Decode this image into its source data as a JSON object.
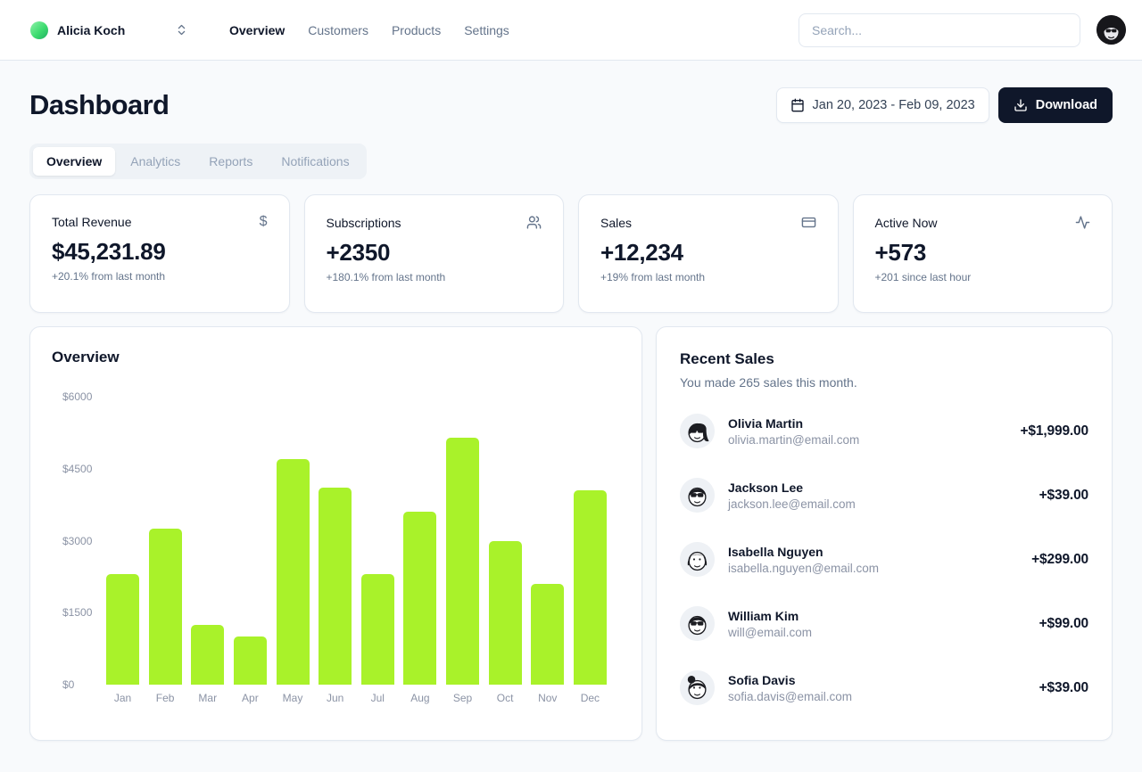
{
  "header": {
    "team_name": "Alicia Koch",
    "nav": [
      {
        "label": "Overview",
        "active": true
      },
      {
        "label": "Customers",
        "active": false
      },
      {
        "label": "Products",
        "active": false
      },
      {
        "label": "Settings",
        "active": false
      }
    ],
    "search_placeholder": "Search..."
  },
  "page": {
    "title": "Dashboard",
    "date_range": "Jan 20, 2023 - Feb 09, 2023",
    "download_label": "Download",
    "tabs": [
      {
        "label": "Overview",
        "active": true
      },
      {
        "label": "Analytics",
        "active": false
      },
      {
        "label": "Reports",
        "active": false
      },
      {
        "label": "Notifications",
        "active": false
      }
    ]
  },
  "stats": [
    {
      "title": "Total Revenue",
      "icon": "dollar-sign",
      "icon_glyph": "$",
      "value": "$45,231.89",
      "note": "+20.1% from last month"
    },
    {
      "title": "Subscriptions",
      "icon": "users",
      "value": "+2350",
      "note": "+180.1% from last month"
    },
    {
      "title": "Sales",
      "icon": "credit-card",
      "value": "+12,234",
      "note": "+19% from last month"
    },
    {
      "title": "Active Now",
      "icon": "activity",
      "value": "+573",
      "note": "+201 since last hour"
    }
  ],
  "chart_data": {
    "type": "bar",
    "title": "Overview",
    "categories": [
      "Jan",
      "Feb",
      "Mar",
      "Apr",
      "May",
      "Jun",
      "Jul",
      "Aug",
      "Sep",
      "Oct",
      "Nov",
      "Dec"
    ],
    "values": [
      2300,
      3250,
      1250,
      1000,
      4700,
      4100,
      2300,
      3600,
      5150,
      3000,
      2100,
      4050
    ],
    "yticks": [
      "$6000",
      "$4500",
      "$3000",
      "$1500",
      "$0"
    ],
    "ylim": [
      0,
      6000
    ],
    "xlabel": "",
    "ylabel": "",
    "grid": false,
    "legend": false,
    "bar_color": "#a9f22a"
  },
  "recent_sales": {
    "title": "Recent Sales",
    "subtitle": "You made 265 sales this month.",
    "items": [
      {
        "name": "Olivia Martin",
        "email": "olivia.martin@email.com",
        "amount": "+$1,999.00",
        "avatar_variant": "olivia"
      },
      {
        "name": "Jackson Lee",
        "email": "jackson.lee@email.com",
        "amount": "+$39.00",
        "avatar_variant": "jackson"
      },
      {
        "name": "Isabella Nguyen",
        "email": "isabella.nguyen@email.com",
        "amount": "+$299.00",
        "avatar_variant": "isabella"
      },
      {
        "name": "William Kim",
        "email": "will@email.com",
        "amount": "+$99.00",
        "avatar_variant": "william"
      },
      {
        "name": "Sofia Davis",
        "email": "sofia.davis@email.com",
        "amount": "+$39.00",
        "avatar_variant": "sofia"
      }
    ]
  },
  "colors": {
    "accent_dark": "#0f172a",
    "bar": "#a9f22a",
    "page_bg": "#f8fafc",
    "border": "#e2e8f0",
    "muted": "#64748b"
  }
}
